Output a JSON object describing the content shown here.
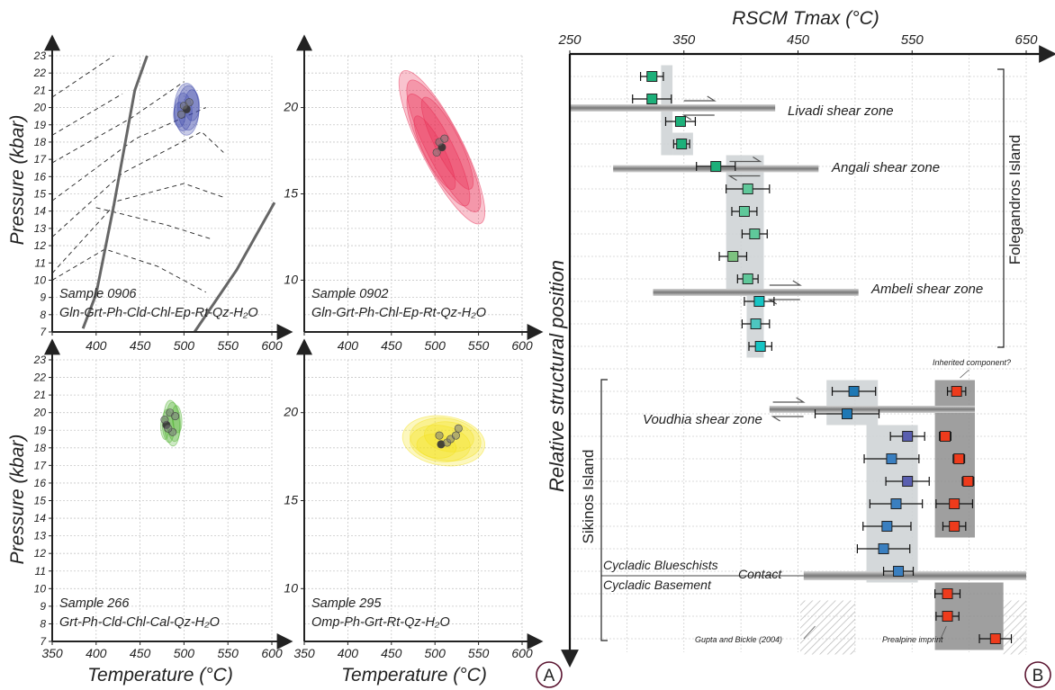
{
  "figure": {
    "panel_a_label": "A",
    "panel_b_label": "B"
  },
  "pt_panels": {
    "pressure_label": "Pressure (kbar)",
    "temperature_label": "Temperature (°C)",
    "pressure_ticks_full": [
      7,
      8,
      9,
      10,
      11,
      12,
      13,
      14,
      15,
      16,
      17,
      18,
      19,
      20,
      21,
      22,
      23
    ],
    "pressure_ticks_coarse": [
      10,
      15,
      20
    ],
    "temperature_ticks": [
      350,
      400,
      450,
      500,
      550,
      600
    ],
    "panels": [
      {
        "id": "0906",
        "sample": "Sample 0906",
        "assemblage": "Gln-Grt-Ph-Cld-Chl-Ep-Rt-Qz-H₂O",
        "color": "#3b46a8",
        "ellipse_center": [
          503,
          19.9
        ],
        "ellipse_size": [
          28,
          3.0
        ],
        "points": [
          [
            503,
            19.9
          ],
          [
            500,
            20.1
          ],
          [
            506,
            20.3
          ],
          [
            497,
            19.6
          ]
        ],
        "has_boundaries": true
      },
      {
        "id": "0902",
        "sample": "Sample 0902",
        "assemblage": "Gln-Grt-Ph-Chl-Ep-Rt-Qz-H₂O",
        "color": "#e8284f",
        "ellipse_center": [
          508,
          17.7
        ],
        "ellipse_size": [
          72,
          5.6
        ],
        "points": [
          [
            508,
            17.7
          ],
          [
            505,
            18.0
          ],
          [
            511,
            18.2
          ],
          [
            502,
            17.4
          ]
        ],
        "has_boundaries": false
      },
      {
        "id": "266",
        "sample": "Sample 266",
        "assemblage": "Grt-Ph-Cld-Chl-Cal-Qz-H₂O",
        "color": "#4caf2a",
        "ellipse_center": [
          486,
          19.4
        ],
        "ellipse_size": [
          18,
          2.6
        ],
        "points": [
          [
            480,
            19.3
          ],
          [
            484,
            20.0
          ],
          [
            490,
            19.8
          ],
          [
            487,
            18.9
          ],
          [
            478,
            19.6
          ],
          [
            482,
            19.1
          ]
        ],
        "has_boundaries": false
      },
      {
        "id": "295",
        "sample": "Sample 295",
        "assemblage": "Omp-Ph-Grt-Rt-Qz-H₂O",
        "color": "#f4e21a",
        "ellipse_center": [
          510,
          18.4
        ],
        "ellipse_size": [
          95,
          2.8
        ],
        "points": [
          [
            507,
            18.2
          ],
          [
            505,
            18.7
          ],
          [
            514,
            18.3
          ],
          [
            518,
            18.5
          ],
          [
            524,
            18.7
          ],
          [
            527,
            19.1
          ]
        ],
        "has_boundaries": false
      }
    ]
  },
  "rscm": {
    "title": "RSCM Tmax (°C)",
    "ylabel": "Relative structural position",
    "x_ticks": [
      250,
      350,
      450,
      550,
      650
    ],
    "folegandros_label": "Folegandros Island",
    "sikinos_label": "Sikinos Island",
    "shear_zones": [
      {
        "name": "Livadi shear zone",
        "pos": 2.4
      },
      {
        "name": "Angali shear zone",
        "pos": 5.1
      },
      {
        "name": "Ambeli shear zone",
        "pos": 10.6
      },
      {
        "name": "Voudhia shear zone",
        "pos": 15.8
      }
    ],
    "contact_label": "Contact",
    "upper_unit": "Cycladic Blueschists",
    "lower_unit": "Cycladic Basement",
    "gupta_label": "Gupta and Bickle (2004)",
    "prealpine_label": "Prealpine imprint",
    "inherited_label": "Inherited component?",
    "samples": [
      {
        "pos": 1,
        "t": 322,
        "err": 10,
        "color": "#1db07a"
      },
      {
        "pos": 2,
        "t": 322,
        "err": 17,
        "color": "#1db07a"
      },
      {
        "pos": 3,
        "t": 347,
        "err": 13,
        "color": "#1db07a"
      },
      {
        "pos": 4,
        "t": 348,
        "err": 7,
        "color": "#1db07a"
      },
      {
        "pos": 5,
        "t": 378,
        "err": 17,
        "color": "#1db07a"
      },
      {
        "pos": 6,
        "t": 406,
        "err": 19,
        "color": "#5fc89a"
      },
      {
        "pos": 7,
        "t": 403,
        "err": 11,
        "color": "#5fc89a"
      },
      {
        "pos": 8,
        "t": 412,
        "err": 11,
        "color": "#5fc89a"
      },
      {
        "pos": 9,
        "t": 393,
        "err": 12,
        "color": "#7dc280"
      },
      {
        "pos": 10,
        "t": 406,
        "err": 9,
        "color": "#5fc89a"
      },
      {
        "pos": 11,
        "t": 416,
        "err": 13,
        "color": "#16c4c4"
      },
      {
        "pos": 12,
        "t": 413,
        "err": 12,
        "color": "#4dc6c0"
      },
      {
        "pos": 13,
        "t": 417,
        "err": 10,
        "color": "#16c4c4"
      },
      {
        "pos": 15,
        "t": 499,
        "err": 19,
        "color": "#1f78b4"
      },
      {
        "pos": 16,
        "t": 493,
        "err": 28,
        "color": "#1f78b4"
      },
      {
        "pos": 17,
        "t": 546,
        "err": 15,
        "color": "#5a5fb0"
      },
      {
        "pos": 18,
        "t": 532,
        "err": 24,
        "color": "#3a7fc0"
      },
      {
        "pos": 19,
        "t": 546,
        "err": 19,
        "color": "#5a5fb0"
      },
      {
        "pos": 20,
        "t": 536,
        "err": 23,
        "color": "#3a7fc0"
      },
      {
        "pos": 21,
        "t": 528,
        "err": 21,
        "color": "#3a7fc0"
      },
      {
        "pos": 22,
        "t": 525,
        "err": 23,
        "color": "#3a7fc0"
      },
      {
        "pos": 23,
        "t": 538,
        "err": 13,
        "color": "#3a7fc0"
      },
      {
        "pos": 15,
        "t": 589,
        "err": 8,
        "color": "#ee3b1c"
      },
      {
        "pos": 17,
        "t": 579,
        "err": 5,
        "color": "#ee3b1c"
      },
      {
        "pos": 18,
        "t": 591,
        "err": 5,
        "color": "#ee3b1c"
      },
      {
        "pos": 19,
        "t": 599,
        "err": 5,
        "color": "#ee3b1c"
      },
      {
        "pos": 20,
        "t": 587,
        "err": 16,
        "color": "#ee3b1c"
      },
      {
        "pos": 21,
        "t": 587,
        "err": 10,
        "color": "#ee3b1c"
      },
      {
        "pos": 24,
        "t": 581,
        "err": 11,
        "color": "#ee3b1c"
      },
      {
        "pos": 25,
        "t": 581,
        "err": 10,
        "color": "#ee3b1c"
      },
      {
        "pos": 26,
        "t": 623,
        "err": 14,
        "color": "#ee3b1c"
      }
    ],
    "bands": [
      {
        "t0": 330,
        "t1": 340,
        "p0": 0.5,
        "p1": 4.5,
        "shade": "light"
      },
      {
        "t0": 340,
        "t1": 358,
        "p0": 3.5,
        "p1": 4.5,
        "shade": "light"
      },
      {
        "t0": 387,
        "t1": 420,
        "p0": 4.5,
        "p1": 10.5,
        "shade": "light"
      },
      {
        "t0": 405,
        "t1": 420,
        "p0": 10.5,
        "p1": 13.5,
        "shade": "light"
      },
      {
        "t0": 475,
        "t1": 520,
        "p0": 14.5,
        "p1": 16.5,
        "shade": "light"
      },
      {
        "t0": 510,
        "t1": 555,
        "p0": 16.5,
        "p1": 23.5,
        "shade": "light"
      },
      {
        "t0": 570,
        "t1": 605,
        "p0": 14.5,
        "p1": 21.5,
        "shade": "dark"
      },
      {
        "t0": 570,
        "t1": 630,
        "p0": 23.5,
        "p1": 26.5,
        "shade": "dark"
      }
    ]
  }
}
